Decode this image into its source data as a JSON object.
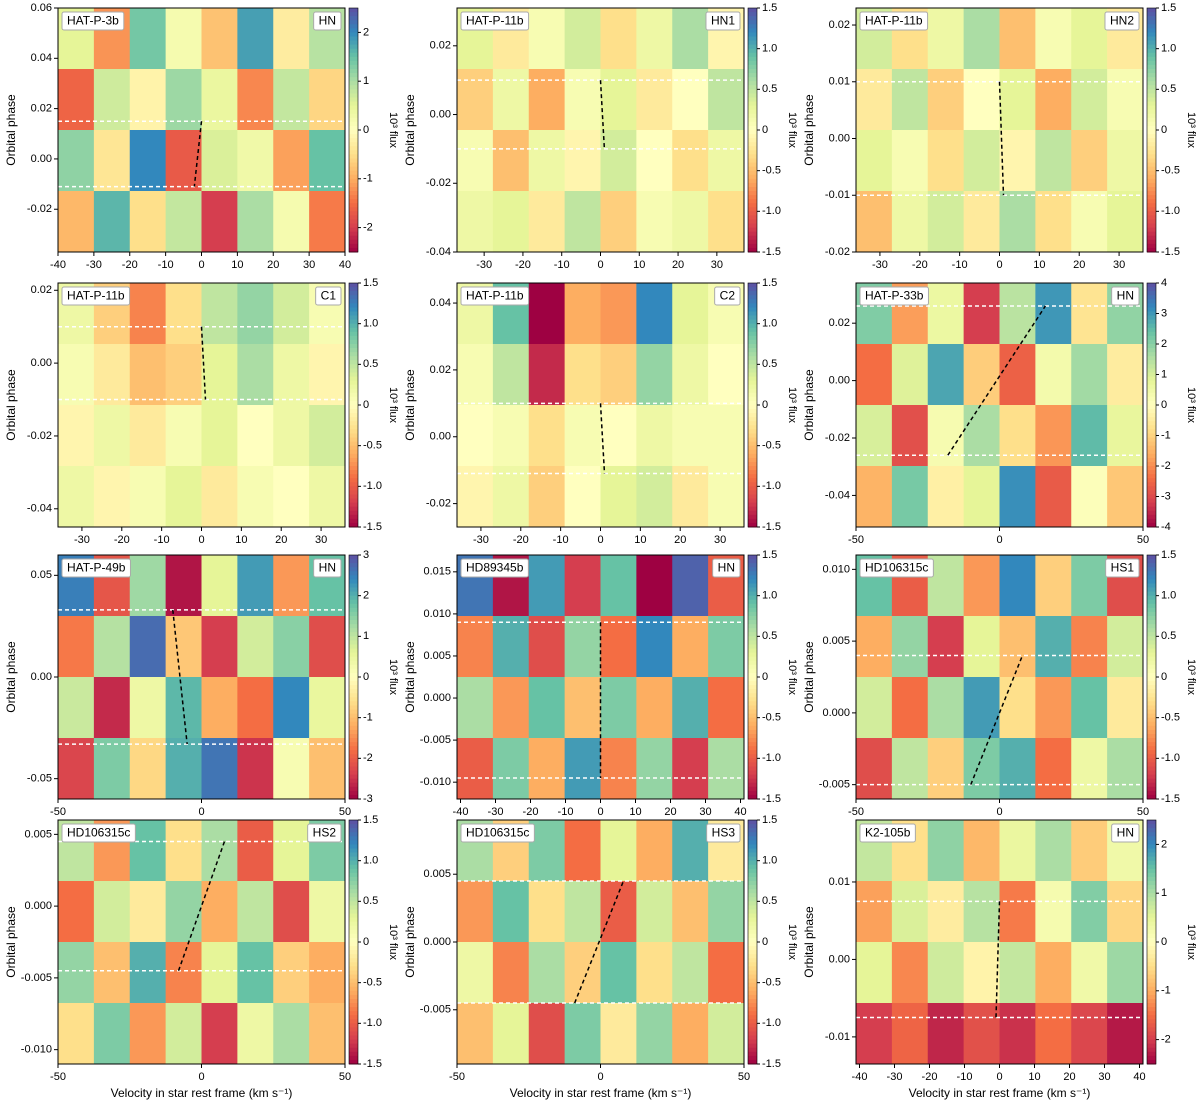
{
  "chart_data": [
    {
      "type": "heatmap",
      "name": "HAT-P-3b",
      "instrument": "HN",
      "ylabel": "Orbital phase",
      "cbar_label": "10³ flux",
      "xlim": [
        -40,
        40
      ],
      "xticks": [
        -40,
        -30,
        -20,
        -10,
        0,
        10,
        20,
        30,
        40
      ],
      "ylim": [
        -0.037,
        0.06
      ],
      "yticks": [
        0.06,
        0.04,
        0.02,
        {
          "value": 0,
          "label": "0.00"
        },
        -0.02
      ],
      "clim": [
        -2.5,
        2.5
      ],
      "cticks": [
        -2,
        -1,
        0,
        1,
        2
      ],
      "values": [
        [
          0.5,
          -1.2,
          1.4,
          0.2,
          -0.8,
          1.8,
          -0.3,
          0.9
        ],
        [
          -1.6,
          0.7,
          -0.2,
          1.1,
          0.4,
          -1.3,
          0.8,
          -0.6
        ],
        [
          1.2,
          -0.4,
          2.0,
          -1.7,
          0.6,
          0.3,
          -1.1,
          1.5
        ],
        [
          -0.9,
          1.6,
          -0.5,
          0.8,
          -2.0,
          1.0,
          0.2,
          -1.4
        ]
      ],
      "track": {
        "x": [
          0,
          -2
        ],
        "y": [
          0.015,
          -0.011
        ]
      },
      "contacts": [
        0.015,
        -0.011
      ]
    },
    {
      "type": "heatmap",
      "name": "HAT-P-11b",
      "instrument": "HN1",
      "ylabel": "Orbital phase",
      "cbar_label": "10³ flux",
      "xlim": [
        -37,
        37
      ],
      "xticks": [
        -30,
        -20,
        -10,
        0,
        10,
        20,
        30
      ],
      "ylim": [
        -0.04,
        0.031
      ],
      "yticks": [
        0.02,
        {
          "value": 0,
          "label": "0.00"
        },
        -0.02,
        -0.04
      ],
      "clim": [
        -1.5,
        1.5
      ],
      "cticks": [
        -1.5,
        {
          "value": -1,
          "label": "-1.0"
        },
        -0.5,
        0,
        0.5,
        {
          "value": 1,
          "label": "1.0"
        },
        1.5
      ],
      "values": [
        [
          0.3,
          -0.2,
          0.1,
          0.4,
          -0.3,
          0.2,
          0.6,
          -0.1
        ],
        [
          -0.4,
          0.2,
          -0.6,
          0.1,
          0.3,
          -0.2,
          0.0,
          0.5
        ],
        [
          0.1,
          -0.5,
          0.2,
          -0.1,
          0.4,
          0.0,
          -0.3,
          0.2
        ],
        [
          0.2,
          0.3,
          -0.2,
          0.5,
          -0.4,
          0.1,
          0.2,
          -0.3
        ]
      ],
      "track": {
        "x": [
          0,
          1
        ],
        "y": [
          0.01,
          -0.01
        ]
      },
      "contacts": [
        0.01,
        -0.01
      ]
    },
    {
      "type": "heatmap",
      "name": "HAT-P-11b",
      "instrument": "HN2",
      "ylabel": "Orbital phase",
      "cbar_label": "10³ flux",
      "xlim": [
        -36,
        36
      ],
      "xticks": [
        -30,
        -20,
        -10,
        0,
        10,
        20,
        30
      ],
      "ylim": [
        -0.02,
        0.023
      ],
      "yticks": [
        0.02,
        0.01,
        {
          "value": 0,
          "label": "0.00"
        },
        -0.01,
        -0.02
      ],
      "clim": [
        -1.5,
        1.5
      ],
      "cticks": [
        -1.5,
        {
          "value": -1,
          "label": "-1.0"
        },
        -0.5,
        0,
        0.5,
        {
          "value": 1,
          "label": "1.0"
        },
        1.5
      ],
      "values": [
        [
          0.4,
          -0.3,
          0.2,
          0.6,
          -0.5,
          0.1,
          0.3,
          -0.2
        ],
        [
          -0.2,
          0.5,
          -0.4,
          0.0,
          0.3,
          -0.6,
          0.4,
          0.1
        ],
        [
          0.3,
          0.1,
          -0.3,
          0.4,
          -0.1,
          0.5,
          -0.4,
          0.2
        ],
        [
          -0.5,
          0.2,
          0.4,
          -0.2,
          0.6,
          -0.3,
          0.1,
          0.3
        ]
      ],
      "track": {
        "x": [
          0,
          1
        ],
        "y": [
          0.01,
          -0.01
        ]
      },
      "contacts": [
        0.01,
        -0.01
      ]
    },
    {
      "type": "heatmap",
      "name": "HAT-P-11b",
      "instrument": "C1",
      "ylabel": "Orbital phase",
      "cbar_label": "10³ flux",
      "xlim": [
        -36,
        36
      ],
      "xticks": [
        -30,
        -20,
        -10,
        0,
        10,
        20,
        30
      ],
      "ylim": [
        -0.045,
        0.022
      ],
      "yticks": [
        0.02,
        {
          "value": 0,
          "label": "0.00"
        },
        -0.02,
        -0.04
      ],
      "clim": [
        -1.5,
        1.5
      ],
      "cticks": [
        -1.5,
        {
          "value": -1,
          "label": "-1.0"
        },
        -0.5,
        0,
        0.5,
        {
          "value": 1,
          "label": "1.0"
        },
        1.5
      ],
      "values": [
        [
          0.2,
          -0.4,
          -0.8,
          -0.3,
          0.5,
          0.7,
          0.4,
          0.1
        ],
        [
          0.1,
          -0.2,
          -0.5,
          -0.4,
          0.3,
          0.6,
          0.2,
          -0.1
        ],
        [
          -0.1,
          0.2,
          -0.2,
          0.1,
          0.3,
          0.0,
          0.2,
          0.4
        ],
        [
          0.2,
          -0.1,
          0.1,
          0.3,
          -0.2,
          0.1,
          0.0,
          0.2
        ]
      ],
      "track": {
        "x": [
          0,
          1
        ],
        "y": [
          0.01,
          -0.01
        ]
      },
      "contacts": [
        0.01,
        -0.01
      ]
    },
    {
      "type": "heatmap",
      "name": "HAT-P-11b",
      "instrument": "C2",
      "ylabel": "Orbital phase",
      "cbar_label": "10³ flux",
      "xlim": [
        -36,
        36
      ],
      "xticks": [
        -30,
        -20,
        -10,
        0,
        10,
        20,
        30
      ],
      "ylim": [
        -0.027,
        0.046
      ],
      "yticks": [
        0.04,
        0.02,
        {
          "value": 0,
          "label": "0.00"
        },
        -0.02
      ],
      "clim": [
        -1.5,
        1.5
      ],
      "cticks": [
        -1.5,
        {
          "value": -1,
          "label": "-1.0"
        },
        -0.5,
        0,
        0.5,
        {
          "value": 1,
          "label": "1.0"
        },
        1.5
      ],
      "values": [
        [
          0.2,
          0.9,
          -1.5,
          -0.6,
          -0.7,
          1.2,
          0.3,
          0.1
        ],
        [
          0.1,
          0.5,
          -1.3,
          -0.3,
          -0.4,
          0.7,
          0.2,
          0.0
        ],
        [
          0.0,
          0.1,
          -0.3,
          0.1,
          0.0,
          0.2,
          0.1,
          0.1
        ],
        [
          -0.1,
          0.2,
          -0.4,
          0.0,
          0.3,
          0.4,
          -0.2,
          0.1
        ]
      ],
      "track": {
        "x": [
          0,
          1
        ],
        "y": [
          0.01,
          -0.011
        ]
      },
      "contacts": [
        0.01,
        -0.011
      ]
    },
    {
      "type": "heatmap",
      "name": "HAT-P-33b",
      "instrument": "HN",
      "ylabel": "Orbital phase",
      "cbar_label": "10³ flux",
      "xlim": [
        -50,
        50
      ],
      "xticks": [
        -50,
        0,
        50
      ],
      "ylim": [
        -0.051,
        0.034
      ],
      "yticks": [
        0.02,
        {
          "value": 0,
          "label": "0.00"
        },
        -0.02,
        -0.04
      ],
      "clim": [
        -4,
        4
      ],
      "cticks": [
        -4,
        -3,
        -2,
        -1,
        0,
        1,
        2,
        3,
        4
      ],
      "values": [
        [
          2.1,
          -1.8,
          0.6,
          -3.2,
          1.4,
          3.0,
          -0.7,
          1.9
        ],
        [
          -2.4,
          0.9,
          2.8,
          -1.1,
          -2.6,
          0.4,
          1.7,
          -0.5
        ],
        [
          1.0,
          -2.9,
          0.3,
          1.6,
          -0.8,
          -1.9,
          2.5,
          0.7
        ],
        [
          -1.5,
          2.2,
          -0.4,
          0.8,
          3.1,
          -2.7,
          0.1,
          -1.2
        ]
      ],
      "track": {
        "x": [
          -18,
          16
        ],
        "y": [
          -0.026,
          0.026
        ]
      },
      "contacts": [
        0.026,
        -0.026
      ]
    },
    {
      "type": "heatmap",
      "name": "HAT-P-49b",
      "instrument": "HN",
      "ylabel": "Orbital phase",
      "cbar_label": "10³ flux",
      "xlim": [
        -50,
        50
      ],
      "xticks": [
        -50,
        0,
        50
      ],
      "ylim": [
        -0.06,
        0.06
      ],
      "yticks": [
        0.05,
        {
          "value": 0,
          "label": "0.00"
        },
        -0.05
      ],
      "clim": [
        -3,
        3
      ],
      "cticks": [
        -3,
        -2,
        -1,
        0,
        1,
        2,
        3
      ],
      "values": [
        [
          2.5,
          -2.1,
          1.3,
          -2.8,
          0.6,
          2.2,
          -1.4,
          1.8
        ],
        [
          -1.7,
          1.1,
          2.7,
          -0.9,
          -2.4,
          0.8,
          1.5,
          -2.2
        ],
        [
          0.9,
          -2.6,
          0.4,
          1.9,
          -1.2,
          -1.8,
          2.4,
          0.5
        ],
        [
          -2.3,
          1.6,
          -0.7,
          2.0,
          2.6,
          -2.5,
          0.2,
          -1.0
        ]
      ],
      "track": {
        "x": [
          -10,
          -5
        ],
        "y": [
          0.033,
          -0.033
        ]
      },
      "contacts": [
        0.033,
        -0.033
      ]
    },
    {
      "type": "heatmap",
      "name": "HD89345b",
      "instrument": "HN",
      "ylabel": "Orbital phase",
      "cbar_label": "10³ flux",
      "xlim": [
        -41,
        41
      ],
      "xticks": [
        -40,
        -30,
        -20,
        -10,
        0,
        10,
        20,
        30,
        40
      ],
      "ylim": [
        -0.012,
        0.017
      ],
      "yticks": [
        0.015,
        {
          "value": 0.01,
          "label": "0.010"
        },
        0.005,
        {
          "value": 0,
          "label": "0.000"
        },
        -0.005,
        {
          "value": -0.01,
          "label": "-0.010"
        }
      ],
      "clim": [
        -1.5,
        1.5
      ],
      "cticks": [
        -1.5,
        {
          "value": -1,
          "label": "-1.0"
        },
        -0.5,
        0,
        0.5,
        {
          "value": 1,
          "label": "1.0"
        },
        1.5
      ],
      "values": [
        [
          1.3,
          -1.4,
          1.1,
          -1.2,
          0.9,
          -1.5,
          1.4,
          -1.0
        ],
        [
          -0.8,
          1.0,
          -1.1,
          0.7,
          -0.9,
          1.2,
          -0.6,
          0.8
        ],
        [
          0.6,
          -0.7,
          0.9,
          -0.5,
          0.8,
          -0.6,
          1.0,
          -0.9
        ],
        [
          -1.0,
          0.8,
          -0.6,
          1.1,
          -0.8,
          0.7,
          -1.2,
          0.6
        ]
      ],
      "track": {
        "x": [
          0,
          0
        ],
        "y": [
          0.009,
          -0.0095
        ]
      },
      "contacts": [
        0.009,
        -0.0095
      ]
    },
    {
      "type": "heatmap",
      "name": "HD106315c",
      "instrument": "HS1",
      "ylabel": "Orbital phase",
      "cbar_label": "10³ flux",
      "xlim": [
        -50,
        50
      ],
      "xticks": [
        -50,
        0,
        50
      ],
      "ylim": [
        -0.006,
        0.011
      ],
      "yticks": [
        {
          "value": 0.01,
          "label": "0.010"
        },
        0.005,
        {
          "value": 0,
          "label": "0.000"
        },
        -0.005
      ],
      "clim": [
        -1.5,
        1.5
      ],
      "cticks": [
        -1.5,
        {
          "value": -1,
          "label": "-1.0"
        },
        -0.5,
        0,
        0.5,
        {
          "value": 1,
          "label": "1.0"
        },
        1.5
      ],
      "values": [
        [
          0.9,
          -1.0,
          0.5,
          -0.7,
          1.2,
          -0.4,
          0.8,
          -1.1
        ],
        [
          -0.6,
          0.7,
          -1.2,
          0.3,
          -0.5,
          1.0,
          -0.8,
          0.4
        ],
        [
          0.4,
          -0.9,
          0.6,
          1.1,
          -0.3,
          -0.7,
          0.9,
          -0.2
        ],
        [
          -1.1,
          0.5,
          -0.4,
          0.8,
          1.0,
          -0.9,
          0.2,
          0.6
        ]
      ],
      "track": {
        "x": [
          -10,
          8
        ],
        "y": [
          -0.005,
          0.004
        ]
      },
      "contacts": [
        0.004,
        -0.005
      ]
    },
    {
      "type": "heatmap",
      "name": "HD106315c",
      "instrument": "HS2",
      "ylabel": "Orbital phase",
      "cbar_label": "10³ flux",
      "xlim": [
        -50,
        50
      ],
      "xticks": [
        -50,
        0,
        50
      ],
      "ylim": [
        -0.011,
        0.006
      ],
      "yticks": [
        0.005,
        {
          "value": 0,
          "label": "0.000"
        },
        -0.005,
        {
          "value": -0.01,
          "label": "-0.010"
        }
      ],
      "clim": [
        -1.5,
        1.5
      ],
      "cticks": [
        -1.5,
        {
          "value": -1,
          "label": "-1.0"
        },
        -0.5,
        0,
        0.5,
        {
          "value": 1,
          "label": "1.0"
        },
        1.5
      ],
      "values": [
        [
          0.5,
          -0.7,
          0.9,
          -0.3,
          0.6,
          -1.0,
          0.3,
          0.8
        ],
        [
          -0.9,
          0.4,
          -0.2,
          0.7,
          -0.6,
          0.5,
          -1.1,
          0.2
        ],
        [
          0.7,
          -0.5,
          1.0,
          -0.8,
          0.3,
          0.9,
          -0.4,
          -0.6
        ],
        [
          -0.3,
          0.8,
          -0.7,
          0.4,
          -1.2,
          0.2,
          0.6,
          -0.5
        ]
      ],
      "track": {
        "x": [
          -8,
          8
        ],
        "y": [
          -0.0045,
          0.0045
        ]
      },
      "contacts": [
        0.0045,
        -0.0045
      ]
    },
    {
      "type": "heatmap",
      "name": "HD106315c",
      "instrument": "HS3",
      "ylabel": "Orbital phase",
      "cbar_label": "10³ flux",
      "xlim": [
        -50,
        50
      ],
      "xticks": [
        -50,
        0,
        50
      ],
      "ylim": [
        -0.009,
        0.009
      ],
      "yticks": [
        0.005,
        {
          "value": 0,
          "label": "0.000"
        },
        -0.005
      ],
      "clim": [
        -1.5,
        1.5
      ],
      "cticks": [
        -1.5,
        {
          "value": -1,
          "label": "-1.0"
        },
        -0.5,
        0,
        0.5,
        {
          "value": 1,
          "label": "1.0"
        },
        1.5
      ],
      "values": [
        [
          0.6,
          -0.4,
          0.8,
          -0.9,
          0.3,
          -0.6,
          1.0,
          -0.2
        ],
        [
          -0.7,
          0.9,
          -0.3,
          0.5,
          -1.0,
          0.4,
          -0.5,
          0.7
        ],
        [
          0.2,
          -0.8,
          0.6,
          -0.4,
          0.9,
          -0.3,
          0.5,
          -0.9
        ],
        [
          -0.5,
          0.3,
          -1.1,
          0.8,
          -0.2,
          0.7,
          -0.6,
          0.4
        ]
      ],
      "track": {
        "x": [
          -9,
          8
        ],
        "y": [
          -0.0045,
          0.0045
        ]
      },
      "contacts": [
        0.0045,
        -0.0045
      ]
    },
    {
      "type": "heatmap",
      "name": "K2-105b",
      "instrument": "HN",
      "ylabel": "Orbital phase",
      "cbar_label": "10³ flux",
      "xlim": [
        -41,
        41
      ],
      "xticks": [
        -40,
        -30,
        -20,
        -10,
        0,
        10,
        20,
        30,
        40
      ],
      "ylim": [
        -0.0135,
        0.018
      ],
      "yticks": [
        0.01,
        {
          "value": 0,
          "label": "0.00"
        },
        -0.01
      ],
      "clim": [
        -2.5,
        2.5
      ],
      "cticks": [
        -2,
        -1,
        0,
        1,
        2
      ],
      "values": [
        [
          0.8,
          -0.5,
          1.2,
          -0.9,
          0.4,
          1.0,
          -0.7,
          0.3
        ],
        [
          -1.1,
          0.6,
          -0.3,
          0.9,
          -1.4,
          0.2,
          1.3,
          -0.6
        ],
        [
          0.5,
          -1.3,
          0.7,
          -0.2,
          0.8,
          -1.0,
          0.3,
          1.1
        ],
        [
          -2.0,
          -1.6,
          -2.2,
          -1.8,
          -2.1,
          -1.5,
          -1.9,
          -2.3
        ]
      ],
      "track": {
        "x": [
          0,
          -1
        ],
        "y": [
          0.0075,
          -0.0075
        ]
      },
      "contacts": [
        0.0075,
        -0.0075
      ]
    }
  ],
  "xlabel": "Velocity in star rest frame (km s⁻¹)",
  "colormap": [
    "#9e0142",
    "#d53e4f",
    "#f46d43",
    "#fdae61",
    "#fee08b",
    "#ffffbf",
    "#e6f598",
    "#abdda4",
    "#66c2a5",
    "#3288bd",
    "#5e4fa2"
  ]
}
